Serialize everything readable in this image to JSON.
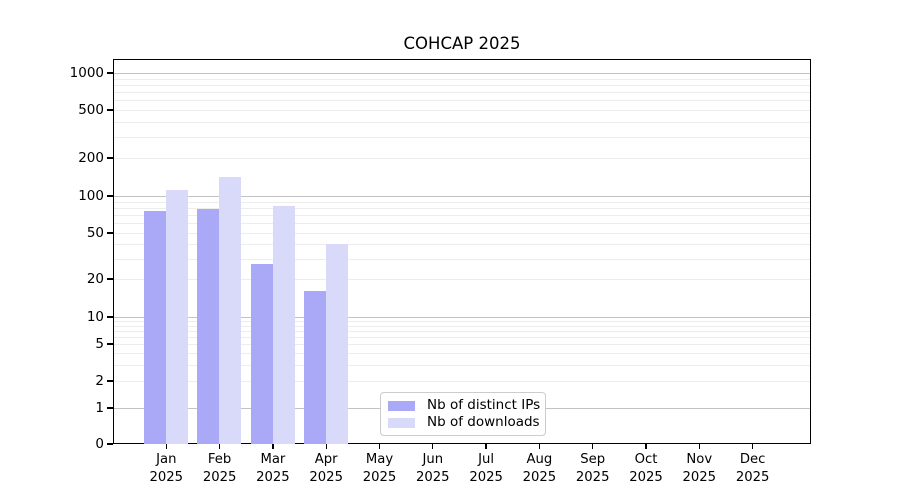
{
  "chart_data": {
    "type": "bar",
    "title": "COHCAP 2025",
    "categories": [
      "Jan",
      "Feb",
      "Mar",
      "Apr",
      "May",
      "Jun",
      "Jul",
      "Aug",
      "Sep",
      "Oct",
      "Nov",
      "Dec"
    ],
    "year_label": "2025",
    "series": [
      {
        "name": "Nb of distinct IPs",
        "color": "#a9a9f7",
        "values": [
          75,
          78,
          27,
          16,
          0,
          0,
          0,
          0,
          0,
          0,
          0,
          0
        ]
      },
      {
        "name": "Nb of downloads",
        "color": "#d9d9fa",
        "values": [
          110,
          140,
          82,
          40,
          0,
          0,
          0,
          0,
          0,
          0,
          0,
          0
        ]
      }
    ],
    "yscale": "symlog",
    "yticks": [
      0,
      1,
      2,
      5,
      10,
      20,
      50,
      100,
      200,
      500,
      1000
    ],
    "ylim": [
      0,
      1400
    ],
    "grid": "horizontal, major and minor",
    "legend_position": "lower center inside plot",
    "colors": {
      "axis": "#000000",
      "text": "#000000",
      "major_grid": "#c3c3c3",
      "minor_grid": "#ededed",
      "background": "#ffffff",
      "legend_border": "#cccccc"
    }
  }
}
